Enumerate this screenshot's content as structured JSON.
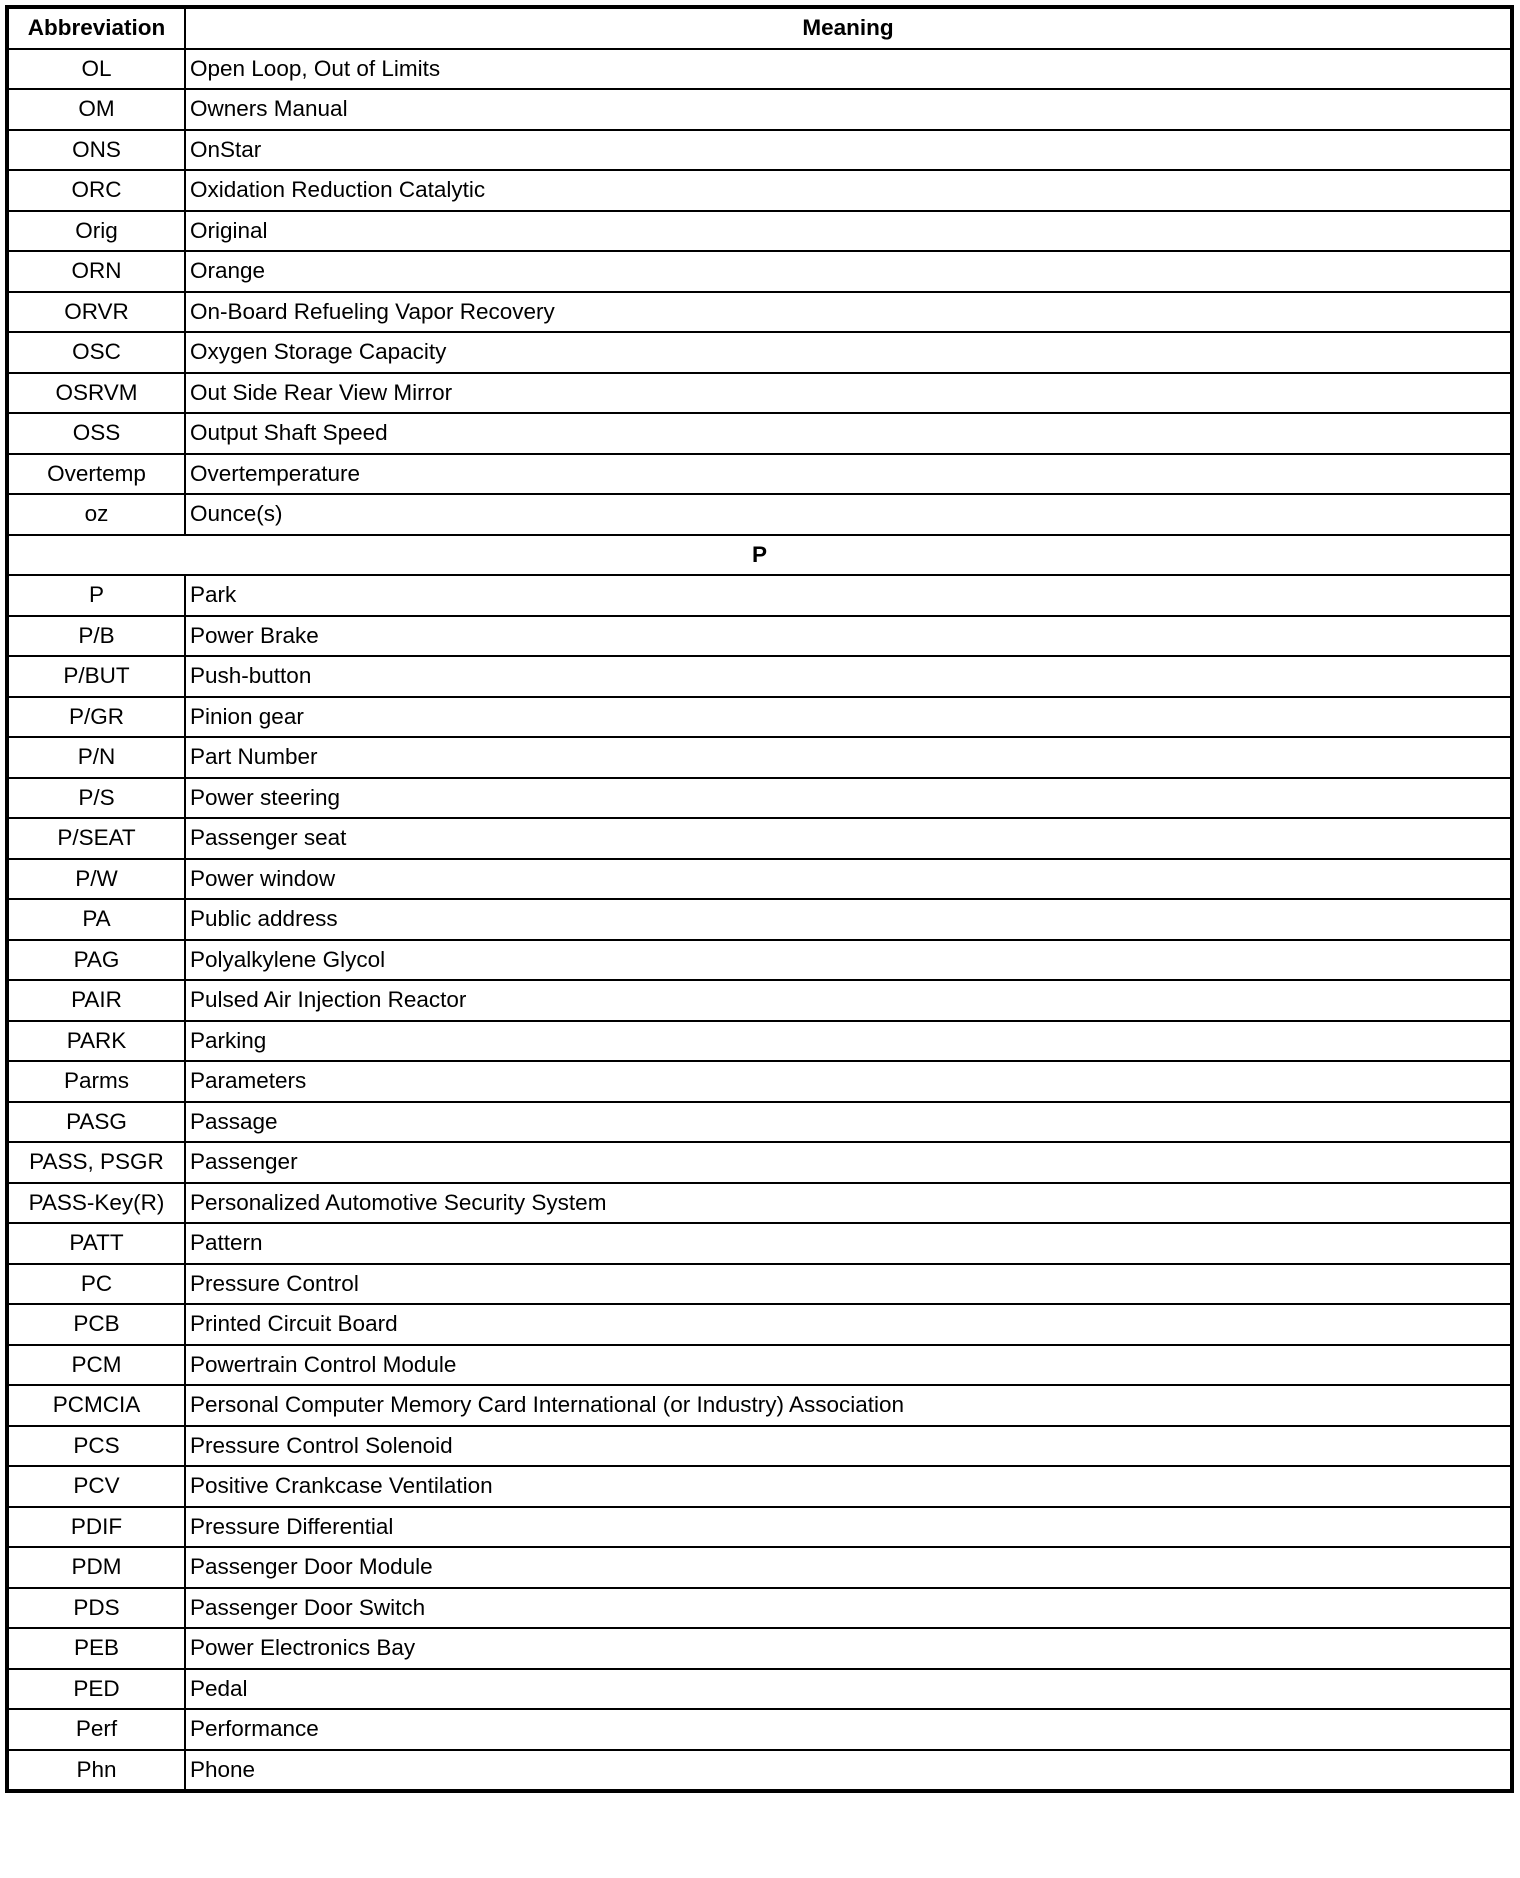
{
  "header": {
    "abbreviation": "Abbreviation",
    "meaning": "Meaning"
  },
  "rows": [
    {
      "abbr": "OL",
      "meaning": "Open Loop, Out of Limits"
    },
    {
      "abbr": "OM",
      "meaning": "Owners Manual"
    },
    {
      "abbr": "ONS",
      "meaning": "OnStar"
    },
    {
      "abbr": "ORC",
      "meaning": "Oxidation Reduction Catalytic"
    },
    {
      "abbr": "Orig",
      "meaning": "Original"
    },
    {
      "abbr": "ORN",
      "meaning": "Orange"
    },
    {
      "abbr": "ORVR",
      "meaning": "On-Board Refueling Vapor Recovery"
    },
    {
      "abbr": "OSC",
      "meaning": "Oxygen Storage Capacity"
    },
    {
      "abbr": "OSRVM",
      "meaning": "Out Side Rear View Mirror"
    },
    {
      "abbr": "OSS",
      "meaning": "Output Shaft Speed"
    },
    {
      "abbr": "Overtemp",
      "meaning": "Overtemperature"
    },
    {
      "abbr": "oz",
      "meaning": "Ounce(s)"
    },
    {
      "section": "P"
    },
    {
      "abbr": "P",
      "meaning": "Park"
    },
    {
      "abbr": "P/B",
      "meaning": "Power Brake"
    },
    {
      "abbr": "P/BUT",
      "meaning": "Push-button"
    },
    {
      "abbr": "P/GR",
      "meaning": "Pinion gear"
    },
    {
      "abbr": "P/N",
      "meaning": "Part Number"
    },
    {
      "abbr": "P/S",
      "meaning": "Power steering"
    },
    {
      "abbr": "P/SEAT",
      "meaning": "Passenger seat"
    },
    {
      "abbr": "P/W",
      "meaning": "Power window"
    },
    {
      "abbr": "PA",
      "meaning": "Public address"
    },
    {
      "abbr": "PAG",
      "meaning": "Polyalkylene Glycol"
    },
    {
      "abbr": "PAIR",
      "meaning": "Pulsed Air Injection Reactor"
    },
    {
      "abbr": "PARK",
      "meaning": "Parking"
    },
    {
      "abbr": "Parms",
      "meaning": "Parameters"
    },
    {
      "abbr": "PASG",
      "meaning": "Passage"
    },
    {
      "abbr": "PASS, PSGR",
      "meaning": "Passenger"
    },
    {
      "abbr": "PASS-Key(R)",
      "meaning": "Personalized Automotive Security System"
    },
    {
      "abbr": "PATT",
      "meaning": "Pattern"
    },
    {
      "abbr": "PC",
      "meaning": "Pressure Control"
    },
    {
      "abbr": "PCB",
      "meaning": "Printed Circuit Board"
    },
    {
      "abbr": "PCM",
      "meaning": "Powertrain Control Module"
    },
    {
      "abbr": "PCMCIA",
      "meaning": "Personal Computer Memory Card International (or Industry) Association"
    },
    {
      "abbr": "PCS",
      "meaning": "Pressure Control Solenoid"
    },
    {
      "abbr": "PCV",
      "meaning": "Positive Crankcase Ventilation"
    },
    {
      "abbr": "PDIF",
      "meaning": "Pressure Differential"
    },
    {
      "abbr": "PDM",
      "meaning": "Passenger Door Module"
    },
    {
      "abbr": "PDS",
      "meaning": "Passenger Door Switch"
    },
    {
      "abbr": "PEB",
      "meaning": "Power Electronics Bay"
    },
    {
      "abbr": "PED",
      "meaning": "Pedal"
    },
    {
      "abbr": "Perf",
      "meaning": "Performance"
    },
    {
      "abbr": "Phn",
      "meaning": "Phone"
    }
  ]
}
